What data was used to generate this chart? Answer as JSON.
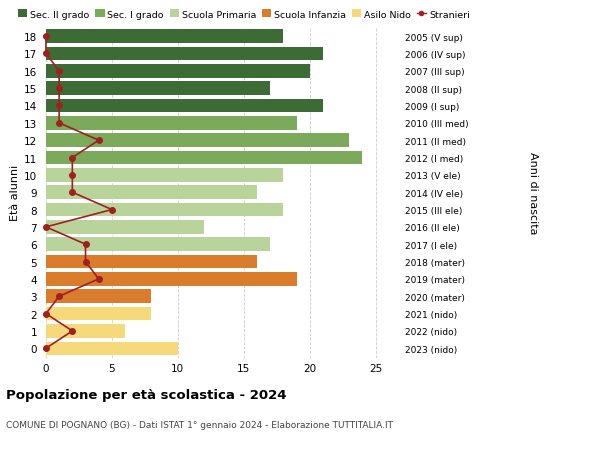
{
  "ages": [
    18,
    17,
    16,
    15,
    14,
    13,
    12,
    11,
    10,
    9,
    8,
    7,
    6,
    5,
    4,
    3,
    2,
    1,
    0
  ],
  "right_labels": [
    "2005 (V sup)",
    "2006 (IV sup)",
    "2007 (III sup)",
    "2008 (II sup)",
    "2009 (I sup)",
    "2010 (III med)",
    "2011 (II med)",
    "2012 (I med)",
    "2013 (V ele)",
    "2014 (IV ele)",
    "2015 (III ele)",
    "2016 (II ele)",
    "2017 (I ele)",
    "2018 (mater)",
    "2019 (mater)",
    "2020 (mater)",
    "2021 (nido)",
    "2022 (nido)",
    "2023 (nido)"
  ],
  "bar_values": [
    18,
    21,
    20,
    17,
    21,
    19,
    23,
    24,
    18,
    16,
    18,
    12,
    17,
    16,
    19,
    8,
    8,
    6,
    10
  ],
  "stranieri": [
    0,
    0,
    1,
    1,
    1,
    1,
    4,
    2,
    2,
    2,
    5,
    0,
    3,
    3,
    4,
    1,
    0,
    2,
    0
  ],
  "bar_colors": [
    "#3d6b35",
    "#3d6b35",
    "#3d6b35",
    "#3d6b35",
    "#3d6b35",
    "#7aaa5a",
    "#7aaa5a",
    "#7aaa5a",
    "#b8d49a",
    "#b8d49a",
    "#b8d49a",
    "#b8d49a",
    "#b8d49a",
    "#d97c2b",
    "#d97c2b",
    "#d97c2b",
    "#f5d97a",
    "#f5d97a",
    "#f5d97a"
  ],
  "legend_labels": [
    "Sec. II grado",
    "Sec. I grado",
    "Scuola Primaria",
    "Scuola Infanzia",
    "Asilo Nido",
    "Stranieri"
  ],
  "legend_colors": [
    "#3d6b35",
    "#7aaa5a",
    "#b8d49a",
    "#d97c2b",
    "#f5d97a",
    "#a02020"
  ],
  "stranieri_color": "#a02020",
  "title": "Popolazione per età scolastica - 2024",
  "subtitle": "COMUNE DI POGNANO (BG) - Dati ISTAT 1° gennaio 2024 - Elaborazione TUTTITALIA.IT",
  "ylabel_left": "Età alunni",
  "ylabel_right": "Anni di nascita",
  "xlim": [
    -0.3,
    27
  ],
  "xticks": [
    0,
    5,
    10,
    15,
    20,
    25
  ],
  "bg_color": "#ffffff",
  "grid_color": "#cccccc"
}
